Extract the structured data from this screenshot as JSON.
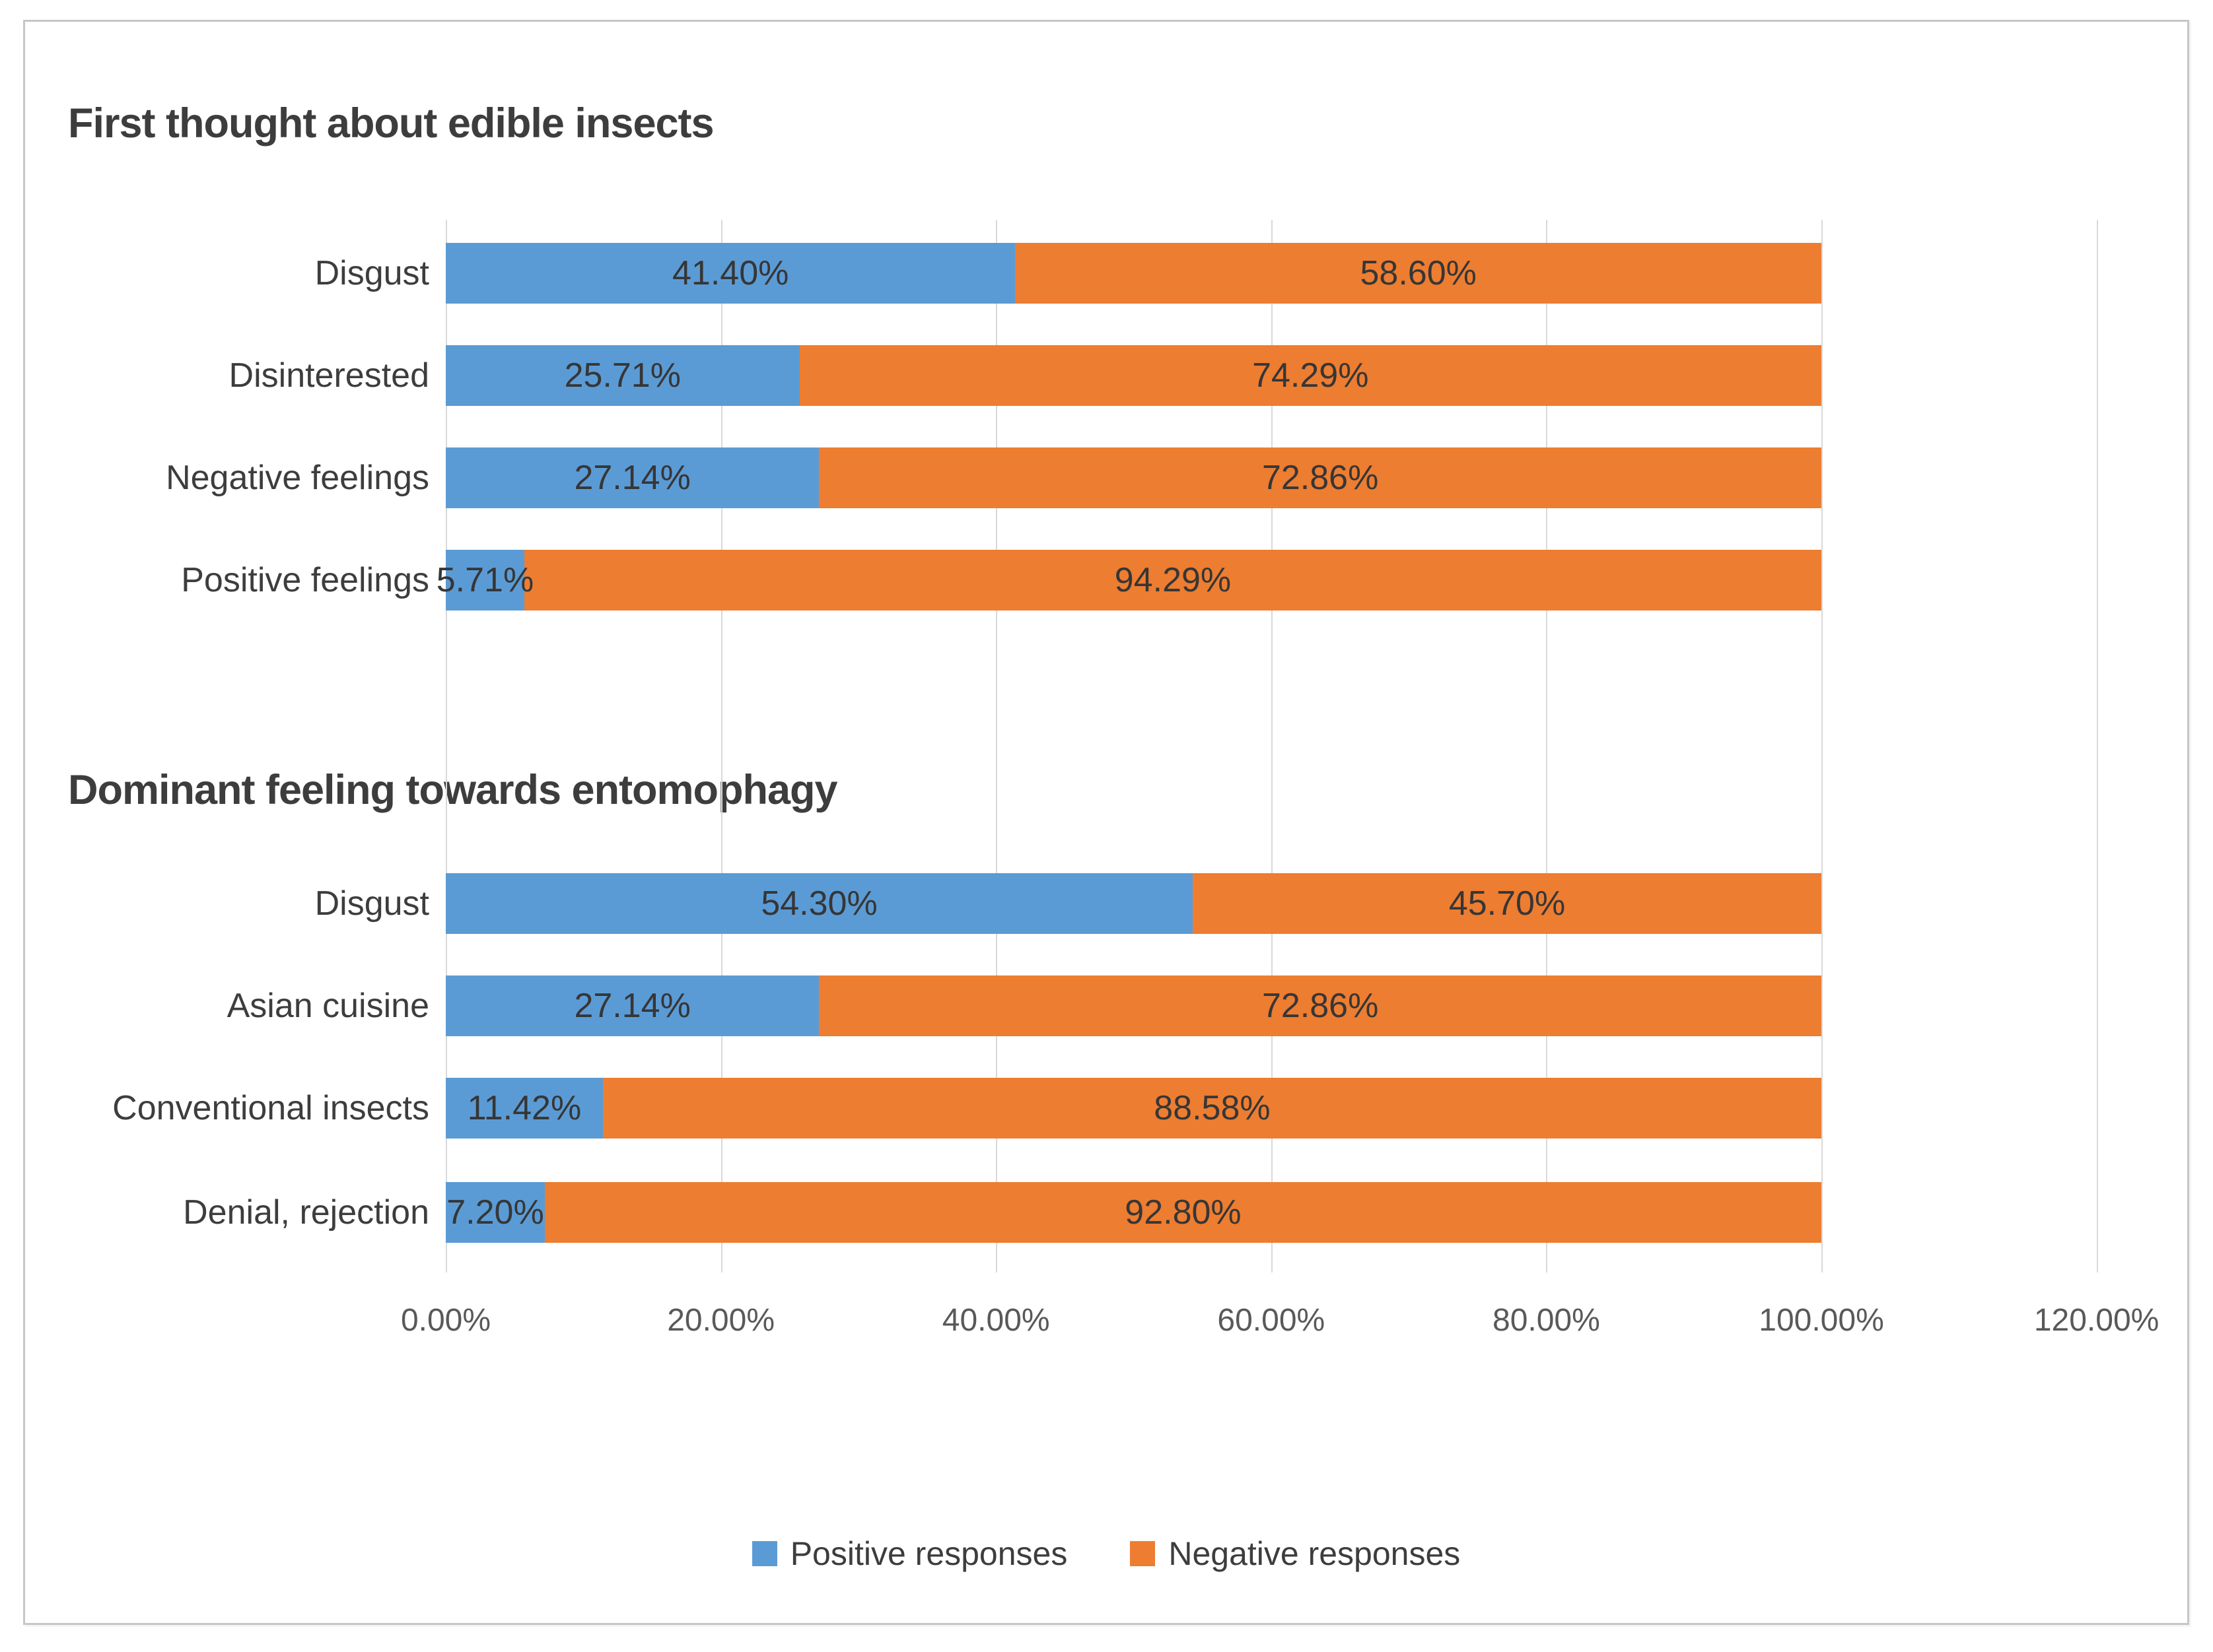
{
  "chart_data": {
    "type": "bar",
    "orientation": "horizontal",
    "stacked": true,
    "values_are_percent": true,
    "grid": "vertical-lines",
    "legend_position": "bottom",
    "legend": [
      {
        "label": "Positive responses",
        "color": "#5B9BD5"
      },
      {
        "label": "Negative responses",
        "color": "#ED7D31"
      }
    ],
    "x_axis": {
      "min": 0,
      "max": 120,
      "tick_step": 20,
      "tick_values": [
        0,
        20,
        40,
        60,
        80,
        100,
        120
      ],
      "tick_labels": [
        "0.00%",
        "20.00%",
        "40.00%",
        "60.00%",
        "80.00%",
        "100.00%",
        "120.00%"
      ]
    },
    "groups": [
      {
        "title": "First thought about edible insects",
        "categories": [
          "Disgust",
          "Disinterested",
          "Negative feelings",
          "Positive feelings"
        ],
        "series": [
          {
            "name": "Positive responses",
            "values": [
              41.4,
              25.71,
              27.14,
              5.71
            ],
            "labels": [
              "41.40%",
              "25.71%",
              "27.14%",
              "5.71%"
            ]
          },
          {
            "name": "Negative responses",
            "values": [
              58.6,
              74.29,
              72.86,
              94.29
            ],
            "labels": [
              "58.60%",
              "74.29%",
              "72.86%",
              "94.29%"
            ]
          }
        ]
      },
      {
        "title": "Dominant feeling towards entomophagy",
        "categories": [
          "Disgust",
          "Asian cuisine",
          "Conventional insects",
          "Denial, rejection"
        ],
        "series": [
          {
            "name": "Positive responses",
            "values": [
              54.3,
              27.14,
              11.42,
              7.2
            ],
            "labels": [
              "54.30%",
              "27.14%",
              "11.42%",
              "7.20%"
            ]
          },
          {
            "name": "Negative responses",
            "values": [
              45.7,
              72.86,
              88.58,
              92.8
            ],
            "labels": [
              "45.70%",
              "72.86%",
              "88.58%",
              "92.80%"
            ]
          }
        ]
      }
    ]
  },
  "colors": {
    "positive": "#5B9BD5",
    "negative": "#ED7D31",
    "title_text": "#3d3d3d",
    "label_text": "#363636",
    "tick_text": "#595959",
    "gridline": "#d9d9d9",
    "frame_border": "#c6c6c6",
    "background": "#ffffff"
  }
}
